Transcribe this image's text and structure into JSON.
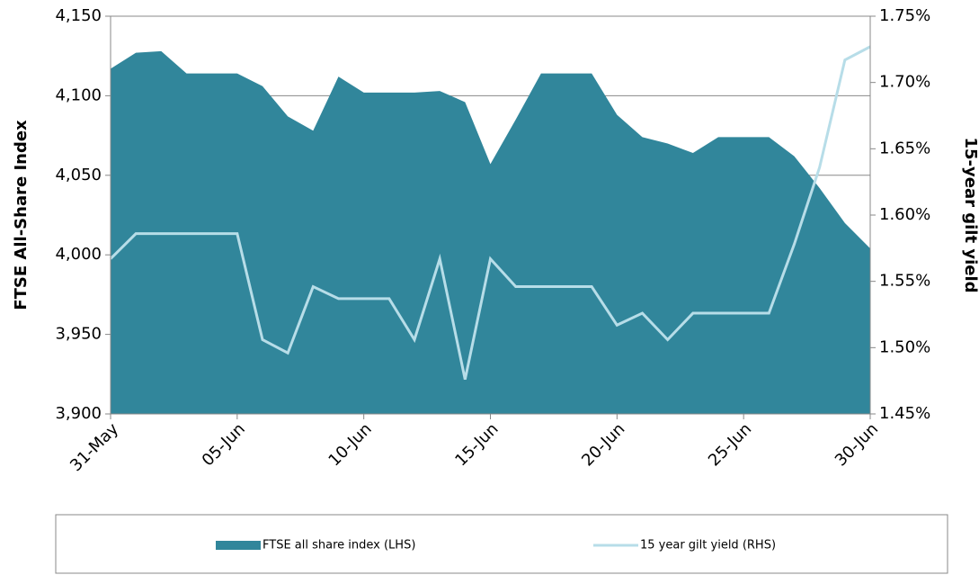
{
  "chart_data": {
    "type": "area-line",
    "y_label": "FTSE All-Share Index",
    "y2_label": "15-year gilt yield",
    "categories": [
      "31-May",
      null,
      null,
      null,
      null,
      "05-Jun",
      null,
      null,
      null,
      null,
      "10-Jun",
      null,
      null,
      null,
      null,
      "15-Jun",
      null,
      null,
      null,
      null,
      "20-Jun",
      null,
      null,
      null,
      null,
      "25-Jun",
      null,
      null,
      null,
      null,
      "30-Jun"
    ],
    "series": [
      {
        "name": "FTSE all share index (LHS)",
        "color": "#31869b",
        "kind": "area",
        "axis": "y",
        "values": [
          4117,
          4127,
          4128,
          4114,
          4114,
          4114,
          4106,
          4087,
          4078,
          4112,
          4102,
          4102,
          4102,
          4103,
          4096,
          4057,
          4085,
          4114,
          4114,
          4114,
          4088,
          4074,
          4070,
          4064,
          4074,
          4074,
          4074,
          4062,
          4042,
          4020,
          4004
        ]
      },
      {
        "name": "15 year gilt yield (RHS)",
        "color": "#b7dde8",
        "kind": "line",
        "axis": "y2",
        "values": [
          1.567,
          1.586,
          1.586,
          1.586,
          1.586,
          1.586,
          1.506,
          1.496,
          1.546,
          1.537,
          1.537,
          1.537,
          1.506,
          1.567,
          1.476,
          1.567,
          1.546,
          1.546,
          1.546,
          1.546,
          1.517,
          1.526,
          1.506,
          1.526,
          1.526,
          1.526,
          1.526,
          1.578,
          1.636,
          1.717,
          1.727
        ]
      }
    ],
    "ylim": [
      3900,
      4150
    ],
    "yticks": [
      {
        "value": 3900,
        "label": "3,900"
      },
      {
        "value": 3950,
        "label": "3,950"
      },
      {
        "value": 4000,
        "label": "4,000"
      },
      {
        "value": 4050,
        "label": "4,050"
      },
      {
        "value": 4100,
        "label": "4,100"
      },
      {
        "value": 4150,
        "label": "4,150"
      }
    ],
    "y2lim": [
      1.45,
      1.75
    ],
    "y2ticks": [
      {
        "value": 1.45,
        "label": "1.45%"
      },
      {
        "value": 1.5,
        "label": "1.50%"
      },
      {
        "value": 1.55,
        "label": "1.55%"
      },
      {
        "value": 1.6,
        "label": "1.60%"
      },
      {
        "value": 1.65,
        "label": "1.65%"
      },
      {
        "value": 1.7,
        "label": "1.70%"
      },
      {
        "value": 1.75,
        "label": "1.75%"
      }
    ],
    "grid": true,
    "legend": "bottom"
  }
}
